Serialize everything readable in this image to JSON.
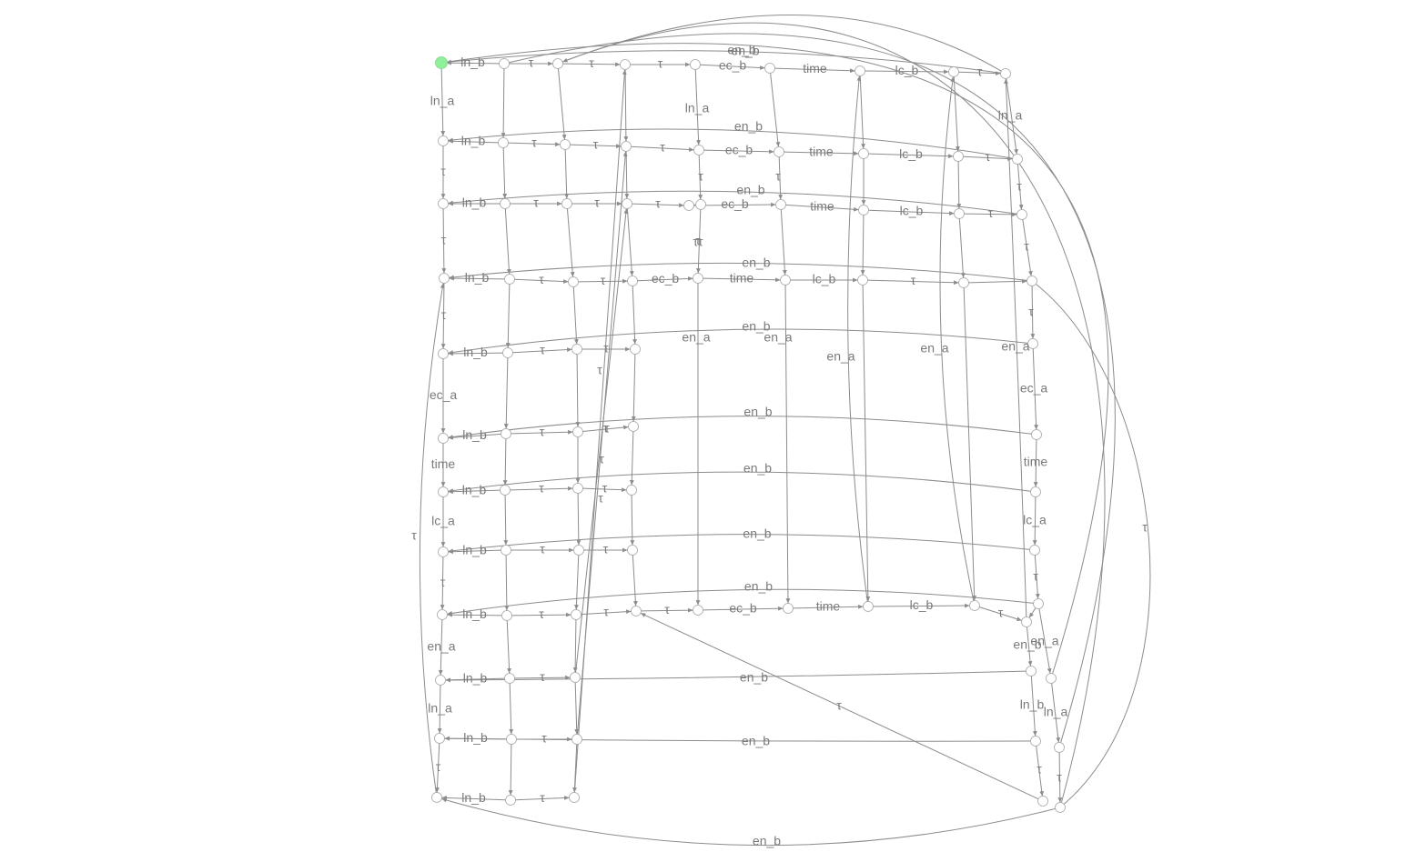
{
  "diagram": {
    "type": "state-transition-graph",
    "initial_state": "s0",
    "node_color": "#ffffff",
    "initial_node_color": "#8ff09a",
    "edge_color": "#8c8c8c",
    "label_color": "#7a7a7a",
    "row_labels": {
      "r0": {
        "start": "ln_b",
        "cells": [
          "τ",
          "τ",
          "τ",
          "ec_b",
          "time",
          "lc_b",
          "τ"
        ],
        "back": "en_b"
      },
      "r1": {
        "start": "ln_b",
        "cells": [
          "τ",
          "τ",
          "τ",
          "ec_b",
          "time",
          "lc_b",
          "τ"
        ],
        "back": "en_b"
      },
      "r2": {
        "start": "ln_b",
        "cells": [
          "τ",
          "τ",
          "τ",
          "ec_b",
          "time",
          "lc_b",
          "τ"
        ],
        "back": "en_b"
      },
      "r3": {
        "start": "ln_b",
        "cells": [
          "τ",
          "τ",
          "ec_b",
          "time",
          "lc_b",
          "τ"
        ],
        "back": "en_b"
      },
      "r4": {
        "start": "ln_b",
        "cells": [
          "τ",
          "τ"
        ],
        "back": "en_b"
      },
      "r5": {
        "start": "ln_b",
        "cells": [
          "τ",
          "τ"
        ],
        "back": "en_b"
      },
      "r6": {
        "start": "ln_b",
        "cells": [
          "τ",
          "τ"
        ],
        "back": "en_b"
      },
      "r7": {
        "start": "ln_b",
        "cells": [
          "τ",
          "τ"
        ],
        "back": "en_b"
      },
      "r8": {
        "start": "ln_b",
        "cells": [
          "τ",
          "τ",
          "τ",
          "ec_b",
          "time",
          "lc_b",
          "τ"
        ],
        "back": "en_b"
      },
      "r9": {
        "start": "ln_b",
        "cells": [
          "τ"
        ],
        "back": "en_b"
      },
      "r10": {
        "start": "ln_b",
        "cells": [
          "τ"
        ],
        "back": "en_b"
      },
      "r11": {
        "start": "ln_b",
        "cells": [
          "τ"
        ],
        "back": "en_b"
      }
    },
    "column_labels": [
      "ln_a",
      "τ",
      "τ",
      "τ",
      "ec_a",
      "time",
      "lc_a",
      "τ",
      "en_a",
      "ln_a",
      "τ"
    ],
    "right_column_labels": [
      "ln_a",
      "τ",
      "τ",
      "τ",
      "en_a",
      "ec_a",
      "time",
      "lc_a",
      "τ",
      "en_b",
      "en_a",
      "ln_b",
      "ln_a",
      "τ",
      "τ"
    ],
    "upper_column_labels": [
      "ln_a",
      "τ",
      "τ",
      "en_a"
    ],
    "misc_labels": [
      "en_a",
      "en_a",
      "en_a",
      "τ",
      "τ",
      "τ",
      "τ",
      "ττ",
      "τ",
      "τ",
      "τ",
      "τ",
      "en_b"
    ]
  }
}
